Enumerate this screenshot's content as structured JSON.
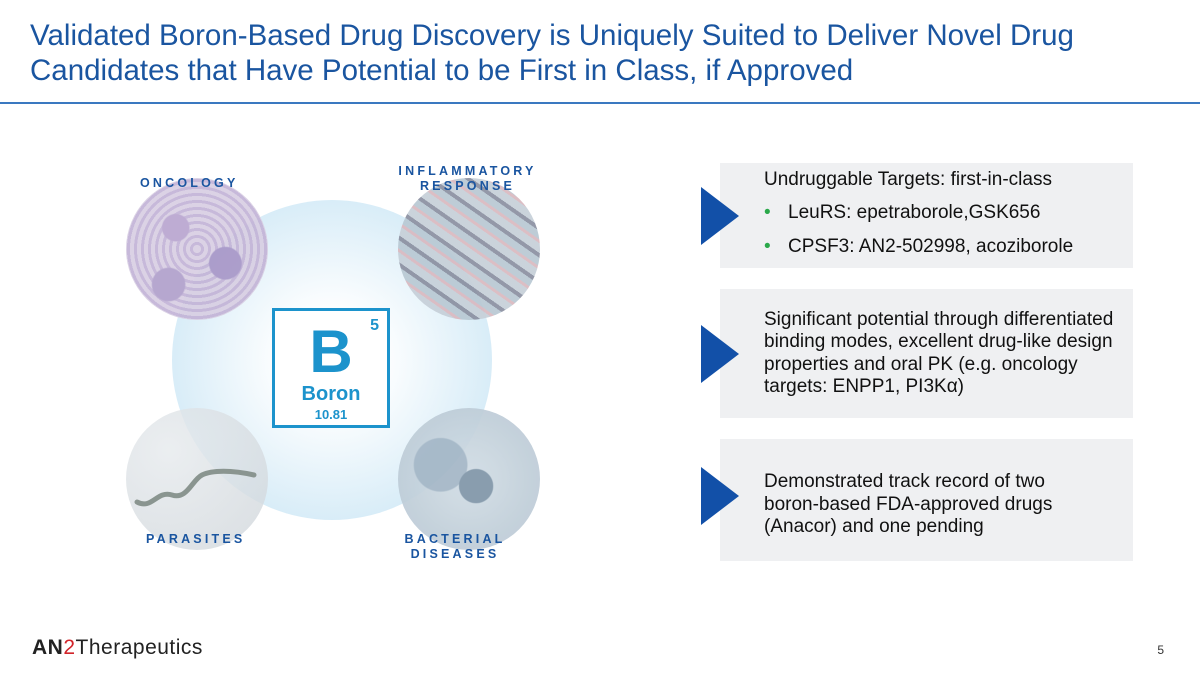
{
  "title": "Validated Boron-Based Drug Discovery is Uniquely Suited to Deliver Novel Drug Candidates that Have Potential to be First in Class, if Approved",
  "diagram": {
    "labels": {
      "oncology": "ONCOLOGY",
      "inflammatory_1": "INFLAMMATORY",
      "inflammatory_2": "RESPONSE",
      "parasites": "PARASITES",
      "bacterial_1": "BACTERIAL",
      "bacterial_2": "DISEASES"
    },
    "element": {
      "number": "5",
      "symbol": "B",
      "name": "Boron",
      "mass": "10.81"
    }
  },
  "boxes": [
    {
      "heading": "Undruggable Targets: first-in-class",
      "bullets": [
        "LeuRS: epetraborole,GSK656",
        "CPSF3: AN2-502998, acoziborole"
      ]
    },
    {
      "text": "Significant potential through differentiated binding modes, excellent drug-like design properties and oral PK (e.g. oncology targets: ENPP1, PI3Kα)"
    },
    {
      "text": "Demonstrated track record of two boron-based FDA-approved drugs (Anacor) and one pending"
    }
  ],
  "footer": {
    "logo_an": "AN",
    "logo_2": "2",
    "logo_rest": "Therapeutics",
    "page": "5"
  },
  "colors": {
    "title": "#1a55a0",
    "arrow": "#1250a8",
    "bullet": "#2aa84a",
    "element": "#1c93cc",
    "box": "#eff0f2"
  }
}
